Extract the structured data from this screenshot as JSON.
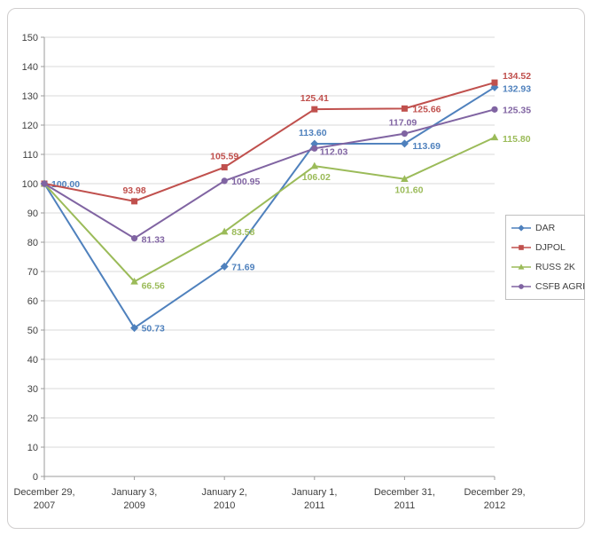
{
  "chart_data": {
    "type": "line",
    "title": "",
    "categories": [
      "December 29, 2007",
      "January 3, 2009",
      "January 2, 2010",
      "January 1, 2011",
      "December 31, 2011",
      "December 29, 2012"
    ],
    "category_lines": [
      [
        "December 29,",
        "2007"
      ],
      [
        "January 3,",
        "2009"
      ],
      [
        "January 2,",
        "2010"
      ],
      [
        "January 1,",
        "2011"
      ],
      [
        "December 31,",
        "2011"
      ],
      [
        "December 29,",
        "2012"
      ]
    ],
    "series": [
      {
        "name": "DAR",
        "color": "#4F81BD",
        "marker": "diamond",
        "values": [
          100.0,
          50.73,
          71.69,
          113.6,
          113.69,
          132.93
        ]
      },
      {
        "name": "DJPOL",
        "color": "#C0504D",
        "marker": "square",
        "values": [
          100.0,
          93.98,
          105.59,
          125.41,
          125.66,
          134.52
        ]
      },
      {
        "name": "RUSS 2K",
        "color": "#9BBB59",
        "marker": "triangle",
        "values": [
          100.0,
          66.56,
          83.58,
          106.02,
          101.6,
          115.8
        ]
      },
      {
        "name": "CSFB AGRI",
        "color": "#8064A2",
        "marker": "circle",
        "values": [
          100.0,
          81.33,
          100.95,
          112.03,
          117.09,
          125.35
        ]
      }
    ],
    "ylim": [
      0,
      150
    ],
    "ytick_step": 10,
    "yticks": [
      0,
      10,
      20,
      30,
      40,
      50,
      60,
      70,
      80,
      90,
      100,
      110,
      120,
      130,
      140,
      150
    ],
    "grid": "horizontal",
    "legend_position": "right",
    "legend_entries": [
      "DAR",
      "DJPOL",
      "RUSS 2K",
      "CSFB AGRI"
    ],
    "value_label_format": "two-decimals",
    "label_layout": [
      [
        [
          8,
          4,
          "start"
        ],
        [
          8,
          4,
          "start"
        ],
        [
          8,
          4,
          "start"
        ],
        [
          -2,
          -9,
          "middle"
        ],
        [
          9,
          6,
          "start"
        ],
        [
          9,
          5,
          "start"
        ]
      ],
      [
        null,
        [
          0,
          -9,
          "middle"
        ],
        [
          0,
          -9,
          "middle"
        ],
        [
          0,
          -9,
          "middle"
        ],
        [
          9,
          4,
          "start"
        ],
        [
          9,
          -4,
          "start"
        ]
      ],
      [
        null,
        [
          8,
          8,
          "start"
        ],
        [
          8,
          4,
          "start"
        ],
        [
          2,
          16,
          "middle"
        ],
        [
          5,
          16,
          "middle"
        ],
        [
          9,
          5,
          "start"
        ]
      ],
      [
        null,
        [
          8,
          5,
          "start"
        ],
        [
          8,
          4,
          "start"
        ],
        [
          6,
          7,
          "start"
        ],
        [
          -2,
          -9,
          "middle"
        ],
        [
          9,
          4,
          "start"
        ]
      ]
    ]
  },
  "style": {
    "background": "#ffffff",
    "frame_border": "#d0cece",
    "grid_color": "#d9d9d9",
    "axis_color": "#9b9b9b",
    "tick_label_color": "#3f3f3f",
    "data_label_colors_follow_series": true,
    "legend_border": "#bfbfbf",
    "legend_text_color": "#3f3f3f"
  }
}
